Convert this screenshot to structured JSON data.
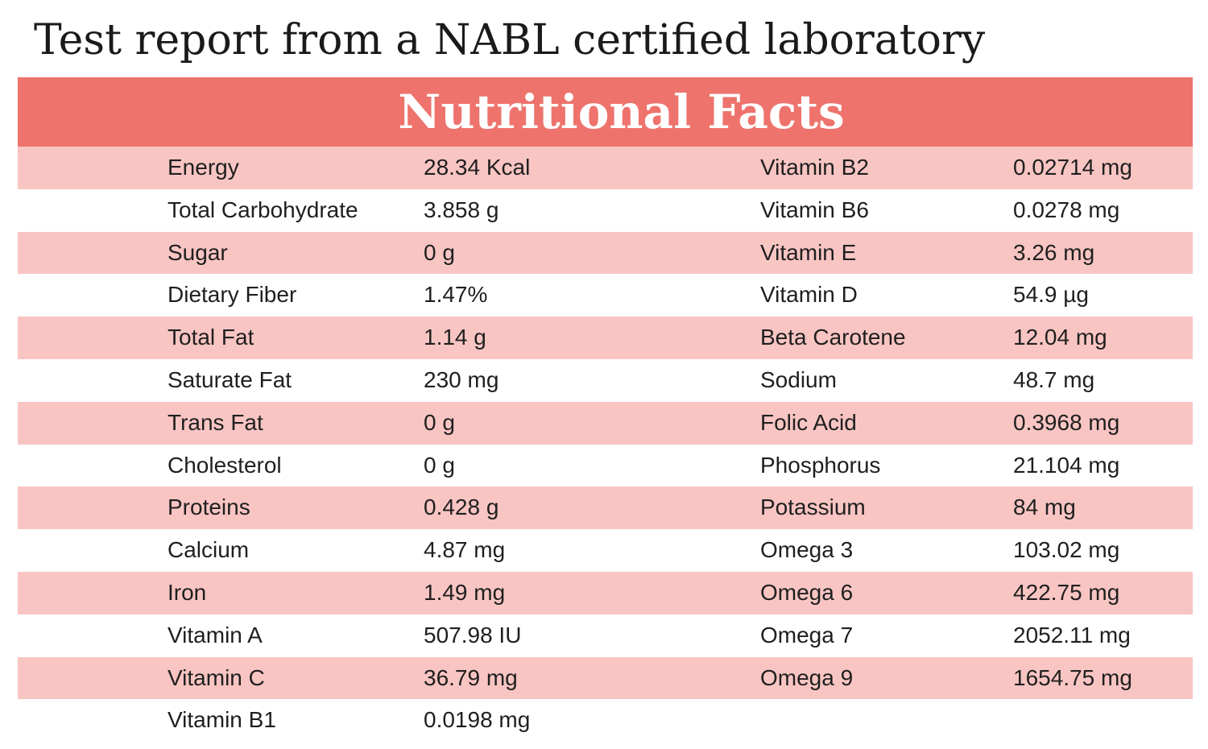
{
  "page": {
    "title": "Test report from a NABL certified laboratory"
  },
  "table": {
    "header": "Nutritional Facts",
    "header_color": "#ee736d",
    "stripe_color": "#f8c5c3",
    "rows": [
      {
        "name1": "Energy",
        "value1": "28.34 Kcal",
        "name2": "Vitamin B2",
        "value2": "0.02714 mg"
      },
      {
        "name1": "Total Carbohydrate",
        "value1": "3.858 g",
        "name2": "Vitamin B6",
        "value2": "0.0278 mg"
      },
      {
        "name1": "Sugar",
        "value1": "0 g",
        "name2": "Vitamin E",
        "value2": "3.26 mg"
      },
      {
        "name1": "Dietary Fiber",
        "value1": "1.47%",
        "name2": "Vitamin D",
        "value2": "54.9 µg"
      },
      {
        "name1": "Total Fat",
        "value1": "1.14 g",
        "name2": "Beta Carotene",
        "value2": "12.04 mg"
      },
      {
        "name1": "Saturate Fat",
        "value1": "230 mg",
        "name2": "Sodium",
        "value2": "48.7 mg"
      },
      {
        "name1": "Trans Fat",
        "value1": "0 g",
        "name2": "Folic Acid",
        "value2": "0.3968 mg"
      },
      {
        "name1": "Cholesterol",
        "value1": "0 g",
        "name2": "Phosphorus",
        "value2": "21.104 mg"
      },
      {
        "name1": "Proteins",
        "value1": "0.428 g",
        "name2": "Potassium",
        "value2": "84 mg"
      },
      {
        "name1": "Calcium",
        "value1": "4.87 mg",
        "name2": "Omega 3",
        "value2": "103.02 mg"
      },
      {
        "name1": "Iron",
        "value1": "1.49 mg",
        "name2": "Omega 6",
        "value2": "422.75 mg"
      },
      {
        "name1": "Vitamin A",
        "value1": "507.98 IU",
        "name2": "Omega 7",
        "value2": "2052.11 mg"
      },
      {
        "name1": "Vitamin C",
        "value1": "36.79 mg",
        "name2": "Omega 9",
        "value2": "1654.75 mg"
      },
      {
        "name1": "Vitamin B1",
        "value1": "0.0198 mg",
        "name2": "",
        "value2": ""
      }
    ]
  }
}
